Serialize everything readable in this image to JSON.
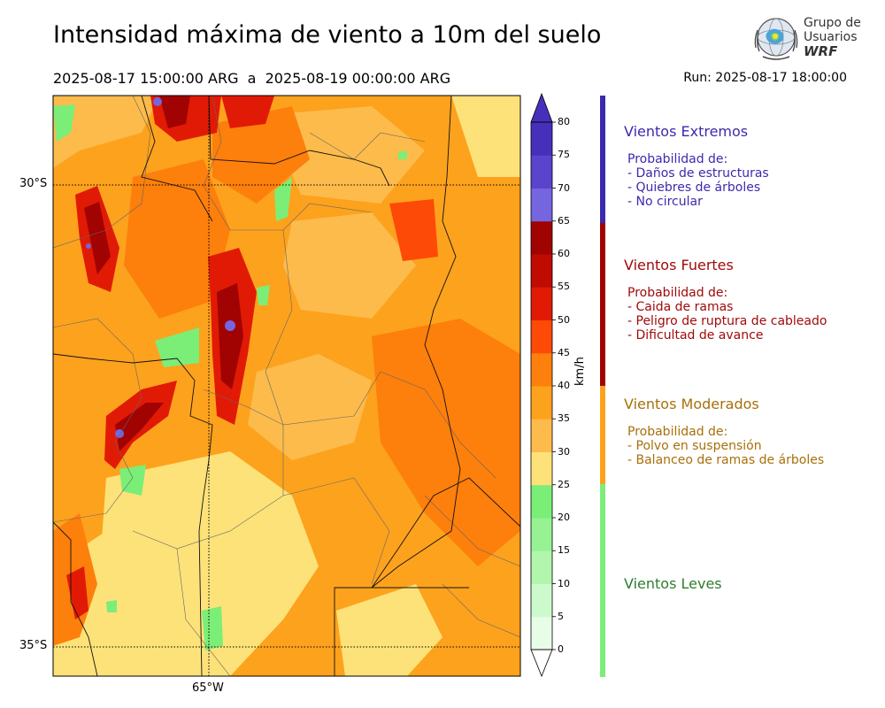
{
  "header": {
    "title": "Intensidad máxima de viento a 10m del suelo",
    "period": "2025-08-17 15:00:00 ARG  a  2025-08-19 00:00:00 ARG",
    "run": "Run: 2025-08-17 18:00:00"
  },
  "logo": {
    "line1": "Grupo de",
    "line2": "Usuarios",
    "line3": "WRF"
  },
  "map": {
    "lat_labels": [
      "30°S",
      "35°S"
    ],
    "lon_labels": [
      "65°W"
    ]
  },
  "colorbar": {
    "unit": "km/h",
    "ticks": [
      "0",
      "5",
      "10",
      "15",
      "20",
      "25",
      "30",
      "35",
      "40",
      "45",
      "50",
      "55",
      "60",
      "65",
      "70",
      "75",
      "80"
    ],
    "colors": [
      "#e8fde8",
      "#cdfacd",
      "#b2f6ad",
      "#97f293",
      "#7bee78",
      "#fde27a",
      "#fdbb4c",
      "#fda21d",
      "#fd7f0c",
      "#fd4a07",
      "#e11a05",
      "#c00b03",
      "#a00302",
      "#7565de",
      "#5a44cc",
      "#4630bb"
    ]
  },
  "categories": [
    {
      "title": "Vientos Extremos",
      "color": "#3b2aae",
      "desc": [
        "Probabilidad de:",
        "- Daños de estructuras",
        "- Quiebres de árboles",
        "- No circular"
      ]
    },
    {
      "title": "Vientos Fuertes",
      "color": "#a00a0a",
      "desc": [
        "Probabilidad de:",
        "- Caida de ramas",
        "- Peligro de ruptura de cableado",
        "- Dificultad de avance"
      ]
    },
    {
      "title": "Vientos Moderados",
      "color": "#a8700a",
      "desc": [
        "Probabilidad de:",
        "- Polvo en suspensión",
        "- Balanceo de ramas de árboles"
      ]
    },
    {
      "title": "Vientos Leves",
      "color": "#2e7d2e",
      "desc": []
    }
  ]
}
